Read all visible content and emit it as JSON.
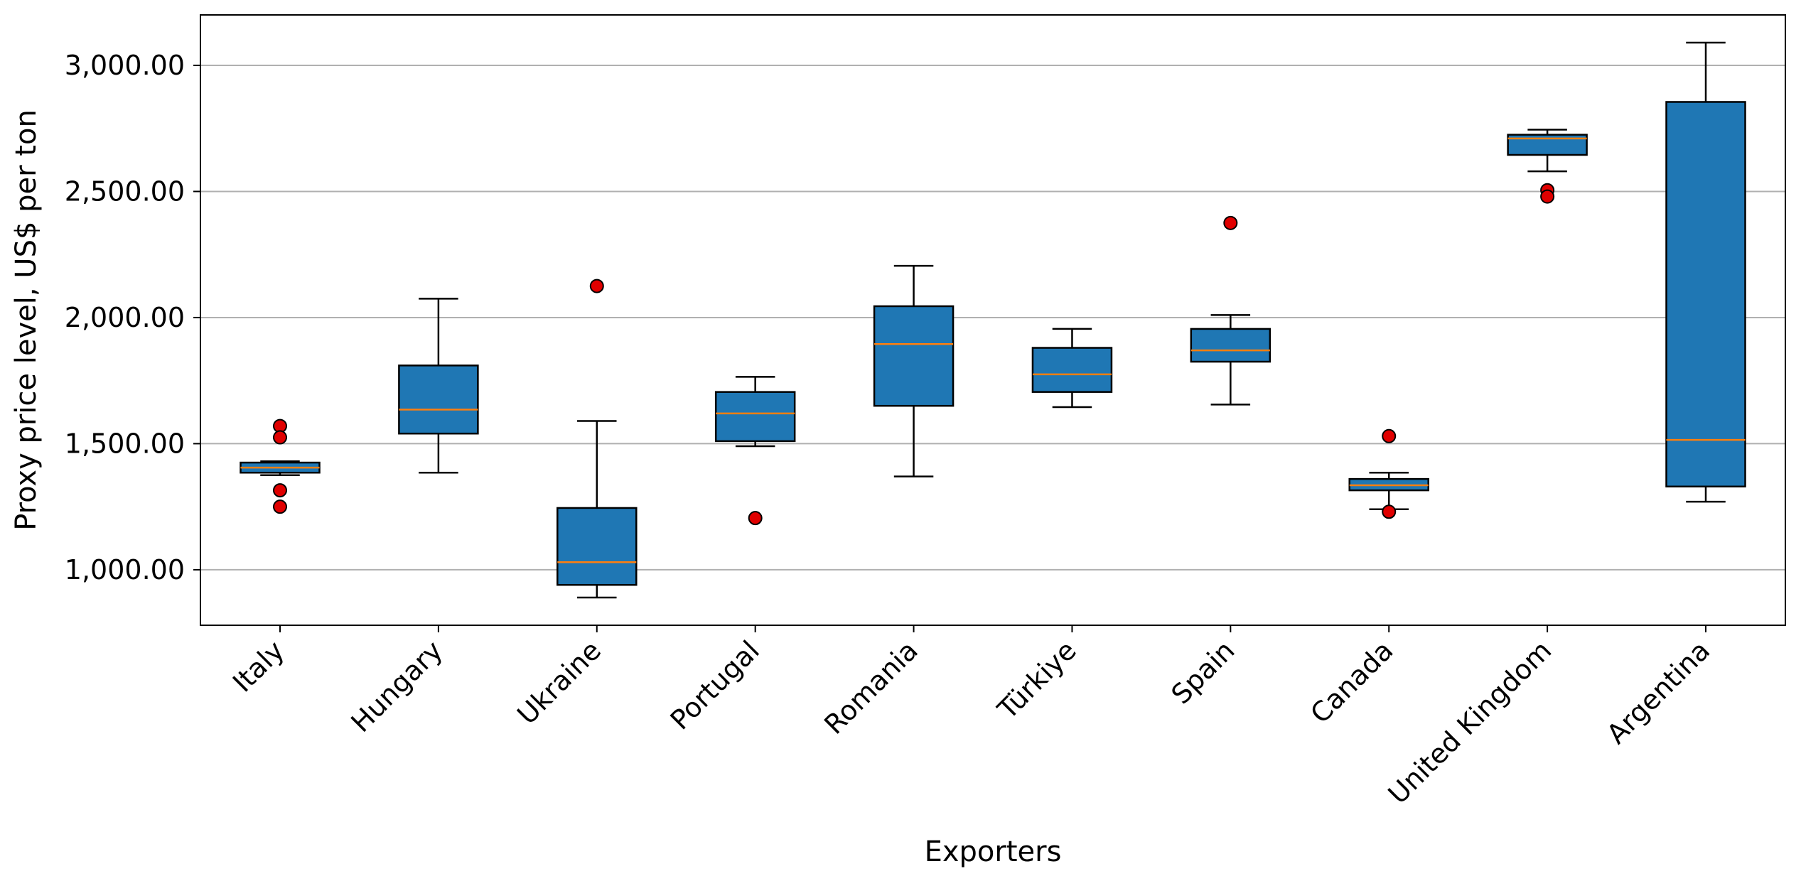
{
  "chart_data": {
    "type": "box",
    "title": "",
    "xlabel": "Exporters",
    "ylabel": "Proxy price level, US$ per ton",
    "ylim": [
      780,
      3200
    ],
    "yticks": [
      1000,
      1500,
      2000,
      2500,
      3000
    ],
    "ytick_labels": [
      "1,000.00",
      "1,500.00",
      "2,000.00",
      "2,500.00",
      "3,000.00"
    ],
    "grid": "horizontal",
    "colors": {
      "box_fill": "#1f77b4",
      "median": "#ff7f0e",
      "outlier": "#e00000",
      "grid": "#b0b0b0"
    },
    "categories": [
      "Italy",
      "Hungary",
      "Ukraine",
      "Portugal",
      "Romania",
      "Türkiye",
      "Spain",
      "Canada",
      "United Kingdom",
      "Argentina"
    ],
    "boxes": [
      {
        "category": "Italy",
        "whisker_low": 1375,
        "q1": 1385,
        "median": 1405,
        "q3": 1425,
        "whisker_high": 1430,
        "outliers": [
          1570,
          1525,
          1315,
          1250
        ]
      },
      {
        "category": "Hungary",
        "whisker_low": 1385,
        "q1": 1540,
        "median": 1635,
        "q3": 1810,
        "whisker_high": 2075,
        "outliers": []
      },
      {
        "category": "Ukraine",
        "whisker_low": 890,
        "q1": 940,
        "median": 1030,
        "q3": 1245,
        "whisker_high": 1590,
        "outliers": [
          2125
        ]
      },
      {
        "category": "Portugal",
        "whisker_low": 1490,
        "q1": 1510,
        "median": 1620,
        "q3": 1705,
        "whisker_high": 1765,
        "outliers": [
          1205
        ]
      },
      {
        "category": "Romania",
        "whisker_low": 1370,
        "q1": 1650,
        "median": 1895,
        "q3": 2045,
        "whisker_high": 2205,
        "outliers": []
      },
      {
        "category": "Türkiye",
        "whisker_low": 1645,
        "q1": 1705,
        "median": 1775,
        "q3": 1880,
        "whisker_high": 1955,
        "outliers": []
      },
      {
        "category": "Spain",
        "whisker_low": 1655,
        "q1": 1825,
        "median": 1870,
        "q3": 1955,
        "whisker_high": 2010,
        "outliers": [
          2375
        ]
      },
      {
        "category": "Canada",
        "whisker_low": 1240,
        "q1": 1315,
        "median": 1335,
        "q3": 1360,
        "whisker_high": 1385,
        "outliers": [
          1530,
          1230
        ]
      },
      {
        "category": "United Kingdom",
        "whisker_low": 2580,
        "q1": 2645,
        "median": 2710,
        "q3": 2725,
        "whisker_high": 2745,
        "outliers": [
          2505,
          2480
        ]
      },
      {
        "category": "Argentina",
        "whisker_low": 1270,
        "q1": 1330,
        "median": 1515,
        "q3": 2855,
        "whisker_high": 3090,
        "outliers": []
      }
    ]
  }
}
